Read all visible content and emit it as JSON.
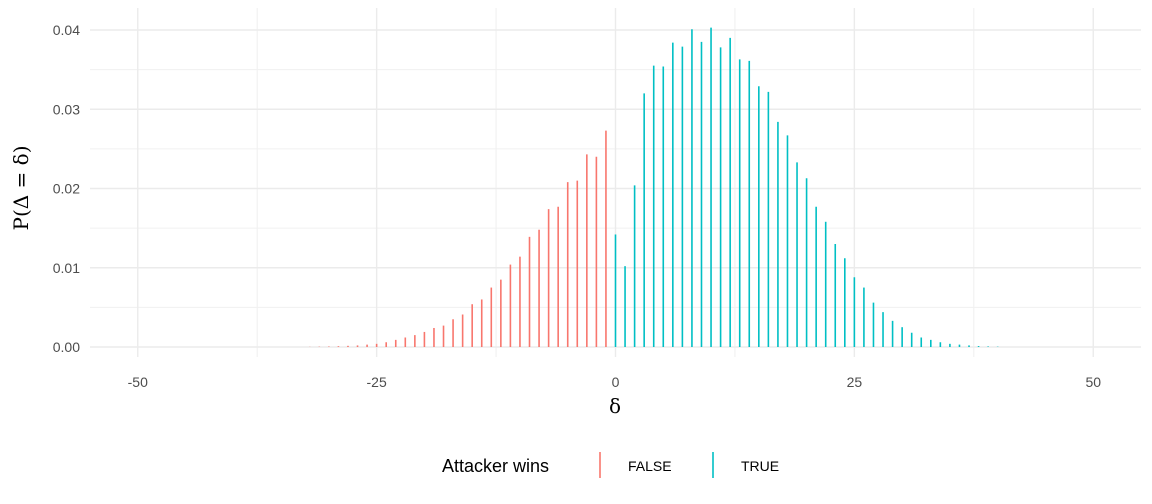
{
  "chart_data": {
    "type": "bar",
    "xlabel": "δ",
    "ylabel": "P(Δ = δ)",
    "xlim": [
      -55,
      55
    ],
    "ylim": [
      0,
      0.042
    ],
    "x_ticks": [
      -50,
      -25,
      0,
      25,
      50
    ],
    "x_tick_labels": [
      "-50",
      "-25",
      "0",
      "25",
      "50"
    ],
    "y_ticks": [
      0,
      0.01,
      0.02,
      0.03,
      0.04
    ],
    "y_tick_labels": [
      "0.00",
      "0.01",
      "0.02",
      "0.03",
      "0.04"
    ],
    "grid": true,
    "legend": {
      "title": "Attacker wins",
      "position": "bottom",
      "entries": [
        {
          "label": "FALSE",
          "color": "#F8766D"
        },
        {
          "label": "TRUE",
          "color": "#00BFC4"
        }
      ]
    },
    "series": [
      {
        "name": "FALSE",
        "color": "#F8766D",
        "x": [
          -32,
          -31,
          -30,
          -29,
          -28,
          -27,
          -26,
          -25,
          -24,
          -23,
          -22,
          -21,
          -20,
          -19,
          -18,
          -17,
          -16,
          -15,
          -14,
          -13,
          -12,
          -11,
          -10,
          -9,
          -8,
          -7,
          -6,
          -5,
          -4,
          -3,
          -2,
          -1
        ],
        "values": [
          2e-05,
          4e-05,
          6e-05,
          0.0001,
          0.00015,
          0.0002,
          0.0003,
          0.0004,
          0.0006,
          0.0009,
          0.0012,
          0.0015,
          0.0019,
          0.0024,
          0.0027,
          0.0035,
          0.0041,
          0.0054,
          0.006,
          0.0075,
          0.0085,
          0.0104,
          0.0114,
          0.0139,
          0.0148,
          0.0174,
          0.0177,
          0.0208,
          0.021,
          0.0243,
          0.024,
          0.0273
        ]
      },
      {
        "name": "TRUE",
        "color": "#00BFC4",
        "x": [
          0,
          1,
          2,
          3,
          4,
          5,
          6,
          7,
          8,
          9,
          10,
          11,
          12,
          13,
          14,
          15,
          16,
          17,
          18,
          19,
          20,
          21,
          22,
          23,
          24,
          25,
          26,
          27,
          28,
          29,
          30,
          31,
          32,
          33,
          34,
          35,
          36,
          37,
          38,
          39,
          40
        ],
        "values": [
          0.0142,
          0.0102,
          0.0204,
          0.032,
          0.0355,
          0.0354,
          0.0384,
          0.0379,
          0.0401,
          0.0385,
          0.0403,
          0.0378,
          0.039,
          0.0363,
          0.0361,
          0.0329,
          0.0322,
          0.0284,
          0.0267,
          0.0233,
          0.0213,
          0.0177,
          0.0158,
          0.013,
          0.0112,
          0.0088,
          0.0075,
          0.0056,
          0.0044,
          0.0033,
          0.0025,
          0.0018,
          0.0012,
          0.0009,
          0.0006,
          0.0004,
          0.0003,
          0.0002,
          0.00012,
          7e-05,
          4e-05
        ]
      }
    ]
  }
}
